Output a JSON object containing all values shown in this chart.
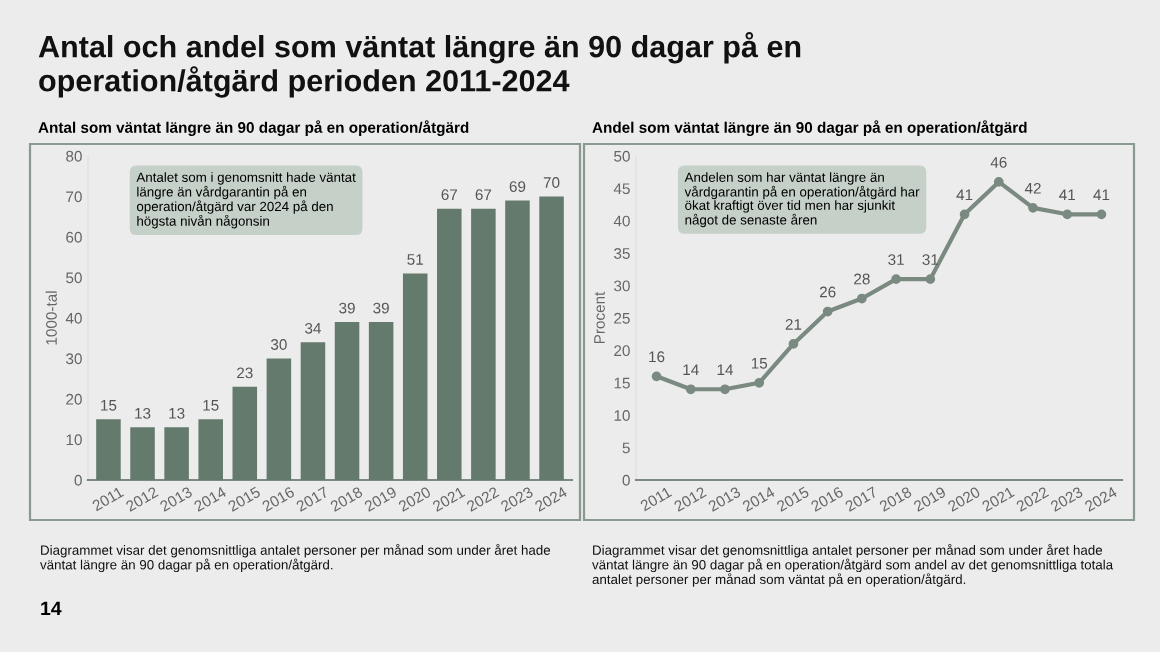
{
  "chart_data": [
    {
      "type": "bar",
      "title": "Antal och andel som väntat längre än 90 dagar på en operation/åtgärd perioden 2011-2024",
      "subtitle": "Antal som väntat längre än 90 dagar på en operation/åtgärd",
      "ylabel": "1000-tal",
      "categories": [
        "2011",
        "2012",
        "2013",
        "2014",
        "2015",
        "2016",
        "2017",
        "2018",
        "2019",
        "2020",
        "2021",
        "2022",
        "2023",
        "2024"
      ],
      "values": [
        15,
        13,
        13,
        15,
        23,
        30,
        34,
        39,
        39,
        51,
        67,
        67,
        69,
        70
      ],
      "color": "#647a6d",
      "ylim": [
        0,
        80
      ],
      "yticks": [
        0,
        10,
        20,
        30,
        40,
        50,
        60,
        70,
        80
      ],
      "grid": false,
      "data_labels": true,
      "annotations": [
        "Antalet som i genomsnitt hade väntat längre än vårdgarantin på en operation/åtgärd var 2024 på den högsta nivån någonsin",
        "Diagrammet visar det genomsnittliga antalet personer per månad som under året hade väntat längre än 90 dagar på en operation/åtgärd.",
        "14"
      ]
    },
    {
      "type": "line",
      "title": "Andel som väntat längre än 90 dagar på en operation/åtgärd",
      "ylabel": "Procent",
      "categories": [
        "2011",
        "2012",
        "2013",
        "2014",
        "2015",
        "2016",
        "2017",
        "2018",
        "2019",
        "2020",
        "2021",
        "2022",
        "2023",
        "2024"
      ],
      "values": [
        16,
        14,
        14,
        15,
        21,
        26,
        28,
        31,
        31,
        41,
        46,
        42,
        41,
        41
      ],
      "color": "#7a8a80",
      "marker": "circle",
      "line_style": "solid",
      "ylim": [
        0,
        50
      ],
      "yticks": [
        0,
        5,
        10,
        15,
        20,
        25,
        30,
        35,
        40,
        45,
        50
      ],
      "grid": false,
      "data_labels": true,
      "annotations": [
        "Andelen som har väntat längre än vårdgarantin på en operation/åtgärd har ökat kraftigt över tid men har sjunkit något de senaste åren",
        "Diagrammet visar det genomsnittliga antalet personer per månad som under året hade väntat längre än 90 dagar på en operation/åtgärd som andel av det genomsnittliga totala antalet personer per månad som väntat på en operation/åtgärd."
      ]
    }
  ]
}
